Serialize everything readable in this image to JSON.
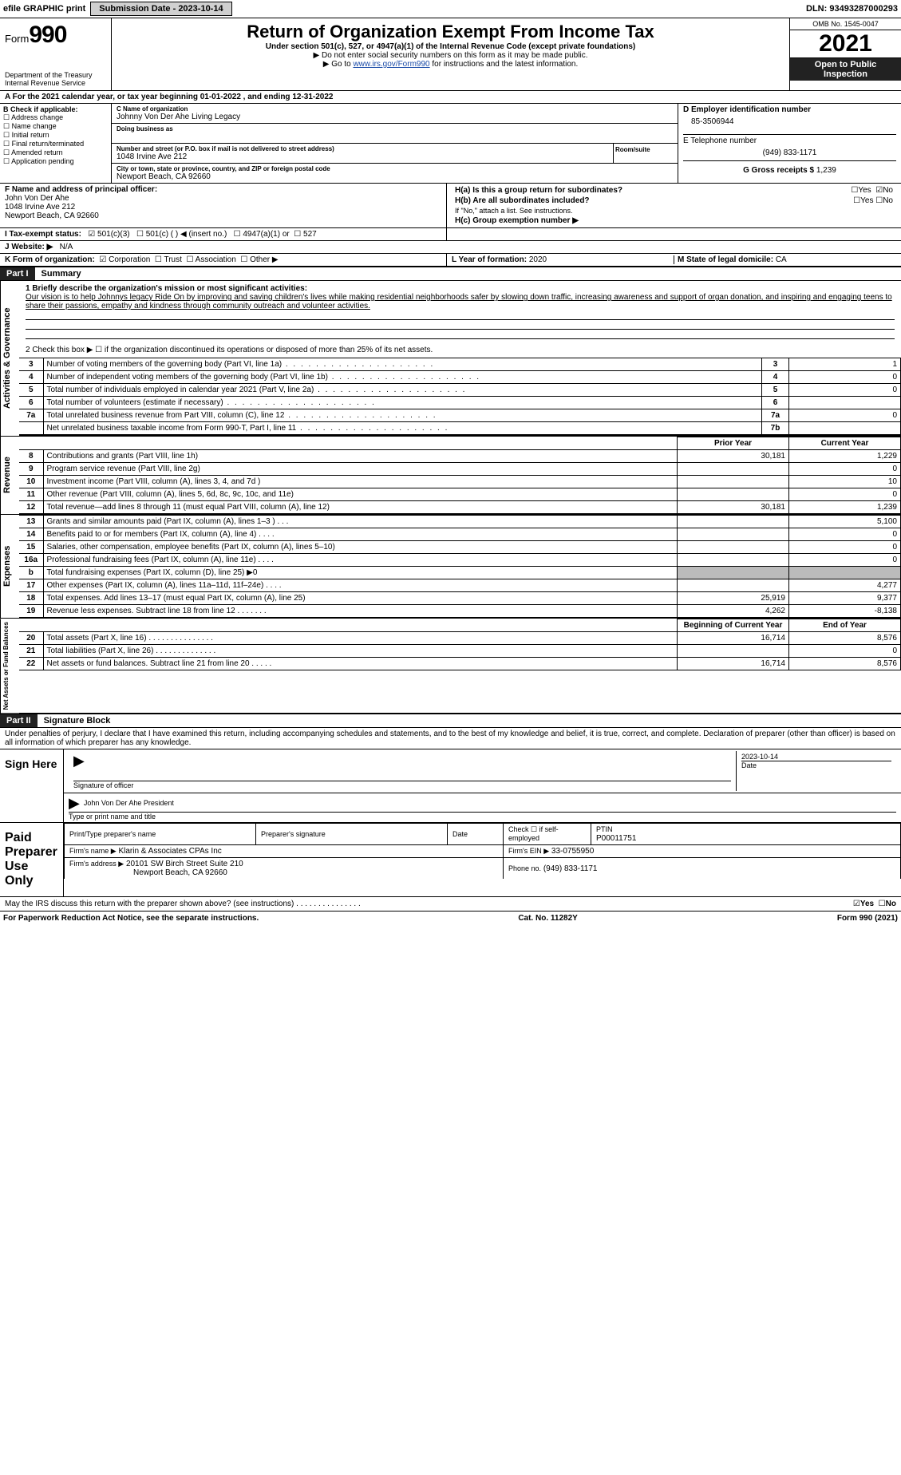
{
  "topbar": {
    "efile": "efile GRAPHIC print",
    "sub_btn": "Submission Date - 2023-10-14",
    "dln": "DLN: 93493287000293"
  },
  "header": {
    "form_label": "Form",
    "form_num": "990",
    "title": "Return of Organization Exempt From Income Tax",
    "subtitle1": "Under section 501(c), 527, or 4947(a)(1) of the Internal Revenue Code (except private foundations)",
    "subtitle2": "▶ Do not enter social security numbers on this form as it may be made public.",
    "subtitle3_pre": "▶ Go to ",
    "subtitle3_link": "www.irs.gov/Form990",
    "subtitle3_post": " for instructions and the latest information.",
    "dept": "Department of the Treasury",
    "irs": "Internal Revenue Service",
    "omb": "OMB No. 1545-0047",
    "year": "2021",
    "open": "Open to Public Inspection"
  },
  "period": {
    "line": "A For the 2021 calendar year, or tax year beginning 01-01-2022   , and ending 12-31-2022"
  },
  "box_b": {
    "title": "B Check if applicable:",
    "items": [
      "Address change",
      "Name change",
      "Initial return",
      "Final return/terminated",
      "Amended return",
      "Application pending"
    ]
  },
  "box_c": {
    "name_lab": "C Name of organization",
    "name": "Johnny Von Der Ahe Living Legacy",
    "dba_lab": "Doing business as",
    "dba": "",
    "addr_lab": "Number and street (or P.O. box if mail is not delivered to street address)",
    "room_lab": "Room/suite",
    "addr": "1048 Irvine Ave 212",
    "city_lab": "City or town, state or province, country, and ZIP or foreign postal code",
    "city": "Newport Beach, CA  92660"
  },
  "box_d": {
    "lab": "D Employer identification number",
    "val": "85-3506944"
  },
  "box_e": {
    "lab": "E Telephone number",
    "val": "(949) 833-1171"
  },
  "box_g": {
    "lab": "G Gross receipts $",
    "val": "1,239"
  },
  "box_f": {
    "lab": "F  Name and address of principal officer:",
    "name": "John Von Der Ahe",
    "addr1": "1048 Irvine Ave 212",
    "addr2": "Newport Beach, CA  92660"
  },
  "box_h": {
    "ha": "H(a)  Is this a group return for subordinates?",
    "hb": "H(b)  Are all subordinates included?",
    "hb_note": "If \"No,\" attach a list. See instructions.",
    "hc": "H(c)  Group exemption number ▶",
    "yes": "Yes",
    "no": "No"
  },
  "box_i": {
    "lab": "I   Tax-exempt status:",
    "o1": "501(c)(3)",
    "o2": "501(c) (  ) ◀ (insert no.)",
    "o3": "4947(a)(1) or",
    "o4": "527"
  },
  "box_j": {
    "lab": "J   Website: ▶",
    "val": "N/A"
  },
  "box_k": {
    "lab": "K Form of organization:",
    "o1": "Corporation",
    "o2": "Trust",
    "o3": "Association",
    "o4": "Other ▶"
  },
  "box_l": {
    "lab": "L Year of formation:",
    "val": "2020"
  },
  "box_m": {
    "lab": "M State of legal domicile:",
    "val": "CA"
  },
  "part1": {
    "hdr": "Part I",
    "ttl": "Summary",
    "q1": "1  Briefly describe the organization's mission or most significant activities:",
    "mission": "Our vision is to help Johnnys legacy Ride On by improving and saving children's lives while making residential neighborhoods safer by slowing down traffic, increasing awareness and support of organ donation, and inspiring and engaging teens to share their passions, empathy and kindness through community outreach and volunteer activities.",
    "q2": "2   Check this box ▶ ☐  if the organization discontinued its operations or disposed of more than 25% of its net assets.",
    "lines_gov": [
      {
        "n": "3",
        "d": "Number of voting members of the governing body (Part VI, line 1a)",
        "c": "3",
        "v": "1"
      },
      {
        "n": "4",
        "d": "Number of independent voting members of the governing body (Part VI, line 1b)",
        "c": "4",
        "v": "0"
      },
      {
        "n": "5",
        "d": "Total number of individuals employed in calendar year 2021 (Part V, line 2a)",
        "c": "5",
        "v": "0"
      },
      {
        "n": "6",
        "d": "Total number of volunteers (estimate if necessary)",
        "c": "6",
        "v": ""
      },
      {
        "n": "7a",
        "d": "Total unrelated business revenue from Part VIII, column (C), line 12",
        "c": "7a",
        "v": "0"
      },
      {
        "n": "",
        "d": "Net unrelated business taxable income from Form 990-T, Part I, line 11",
        "c": "7b",
        "v": ""
      }
    ],
    "col_prior": "Prior Year",
    "col_curr": "Current Year",
    "revenue": [
      {
        "n": "8",
        "d": "Contributions and grants (Part VIII, line 1h)",
        "p": "30,181",
        "c": "1,229"
      },
      {
        "n": "9",
        "d": "Program service revenue (Part VIII, line 2g)",
        "p": "",
        "c": "0"
      },
      {
        "n": "10",
        "d": "Investment income (Part VIII, column (A), lines 3, 4, and 7d )",
        "p": "",
        "c": "10"
      },
      {
        "n": "11",
        "d": "Other revenue (Part VIII, column (A), lines 5, 6d, 8c, 9c, 10c, and 11e)",
        "p": "",
        "c": "0"
      },
      {
        "n": "12",
        "d": "Total revenue—add lines 8 through 11 (must equal Part VIII, column (A), line 12)",
        "p": "30,181",
        "c": "1,239"
      }
    ],
    "expenses": [
      {
        "n": "13",
        "d": "Grants and similar amounts paid (Part IX, column (A), lines 1–3 ) . . .",
        "p": "",
        "c": "5,100"
      },
      {
        "n": "14",
        "d": "Benefits paid to or for members (Part IX, column (A), line 4) . . . .",
        "p": "",
        "c": "0"
      },
      {
        "n": "15",
        "d": "Salaries, other compensation, employee benefits (Part IX, column (A), lines 5–10)",
        "p": "",
        "c": "0"
      },
      {
        "n": "16a",
        "d": "Professional fundraising fees (Part IX, column (A), line 11e) . . . .",
        "p": "",
        "c": "0"
      },
      {
        "n": "b",
        "d": "Total fundraising expenses (Part IX, column (D), line 25) ▶0",
        "p": "GREY",
        "c": "GREY"
      },
      {
        "n": "17",
        "d": "Other expenses (Part IX, column (A), lines 11a–11d, 11f–24e) . . . .",
        "p": "",
        "c": "4,277"
      },
      {
        "n": "18",
        "d": "Total expenses. Add lines 13–17 (must equal Part IX, column (A), line 25)",
        "p": "25,919",
        "c": "9,377"
      },
      {
        "n": "19",
        "d": "Revenue less expenses. Subtract line 18 from line 12 . . . . . . .",
        "p": "4,262",
        "c": "-8,138"
      }
    ],
    "col_beg": "Beginning of Current Year",
    "col_end": "End of Year",
    "netassets": [
      {
        "n": "20",
        "d": "Total assets (Part X, line 16) . . . . . . . . . . . . . . .",
        "p": "16,714",
        "c": "8,576"
      },
      {
        "n": "21",
        "d": "Total liabilities (Part X, line 26) . . . . . . . . . . . . . .",
        "p": "",
        "c": "0"
      },
      {
        "n": "22",
        "d": "Net assets or fund balances. Subtract line 21 from line 20 . . . . .",
        "p": "16,714",
        "c": "8,576"
      }
    ],
    "vert_gov": "Activities & Governance",
    "vert_rev": "Revenue",
    "vert_exp": "Expenses",
    "vert_net": "Net Assets or Fund Balances"
  },
  "part2": {
    "hdr": "Part II",
    "ttl": "Signature Block",
    "decl": "Under penalties of perjury, I declare that I have examined this return, including accompanying schedules and statements, and to the best of my knowledge and belief, it is true, correct, and complete. Declaration of preparer (other than officer) is based on all information of which preparer has any knowledge.",
    "sign_here": "Sign Here",
    "sig_lab": "Signature of officer",
    "date_lab": "Date",
    "date_val": "2023-10-14",
    "name_title": "John Von Der Ahe  President",
    "name_lab": "Type or print name and title",
    "paid": "Paid Preparer Use Only",
    "pp_name_lab": "Print/Type preparer's name",
    "pp_sig_lab": "Preparer's signature",
    "pp_date_lab": "Date",
    "pp_check": "Check ☐ if self-employed",
    "ptin_lab": "PTIN",
    "ptin": "P00011751",
    "firm_name_lab": "Firm's name   ▶",
    "firm_name": "Klarin & Associates CPAs Inc",
    "firm_ein_lab": "Firm's EIN ▶",
    "firm_ein": "33-0755950",
    "firm_addr_lab": "Firm's address ▶",
    "firm_addr1": "20101 SW Birch Street Suite 210",
    "firm_addr2": "Newport Beach, CA  92660",
    "phone_lab": "Phone no.",
    "phone": "(949) 833-1171",
    "may_irs": "May the IRS discuss this return with the preparer shown above? (see instructions)  . . . . . . . . . . . . . . .",
    "yes": "Yes",
    "no": "No"
  },
  "footer": {
    "pra": "For Paperwork Reduction Act Notice, see the separate instructions.",
    "cat": "Cat. No. 11282Y",
    "form": "Form 990 (2021)"
  },
  "colors": {
    "link": "#1a4ba8",
    "dark": "#222222",
    "grey": "#bbbbbb"
  }
}
